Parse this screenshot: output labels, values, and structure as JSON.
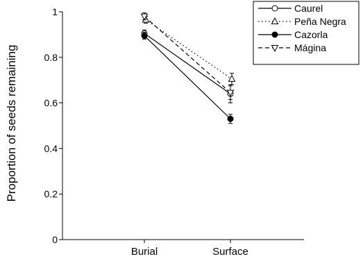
{
  "chart_data": {
    "type": "line",
    "title": "",
    "xlabel": "",
    "ylabel": "Proportion of seeds remaining",
    "categories": [
      "Burial",
      "Surface"
    ],
    "ylim": [
      0,
      1
    ],
    "yticks": [
      {
        "value": 0,
        "label": "0"
      },
      {
        "value": 0.2,
        "label": "0.2"
      },
      {
        "value": 0.4,
        "label": "0.4"
      },
      {
        "value": 0.6,
        "label": "0.6"
      },
      {
        "value": 0.8,
        "label": "0.8"
      },
      {
        "value": 1,
        "label": "1"
      }
    ],
    "grid": false,
    "legend_position": "top-right",
    "series": [
      {
        "name": "Caurel",
        "values": [
          0.905,
          0.64
        ],
        "errors": [
          0.015,
          0.04
        ],
        "marker": "circle-open",
        "line": "solid"
      },
      {
        "name": "Peña Negra",
        "values": [
          0.965,
          0.705
        ],
        "errors": [
          0.015,
          0.025
        ],
        "marker": "triangle-up-open",
        "line": "dotted"
      },
      {
        "name": "Cazorla",
        "values": [
          0.895,
          0.53
        ],
        "errors": [
          0.015,
          0.02
        ],
        "marker": "circle-filled",
        "line": "solid"
      },
      {
        "name": "Mágina",
        "values": [
          0.98,
          0.645
        ],
        "errors": [
          0.015,
          0.03
        ],
        "marker": "triangle-down-open",
        "line": "dashed"
      }
    ]
  }
}
